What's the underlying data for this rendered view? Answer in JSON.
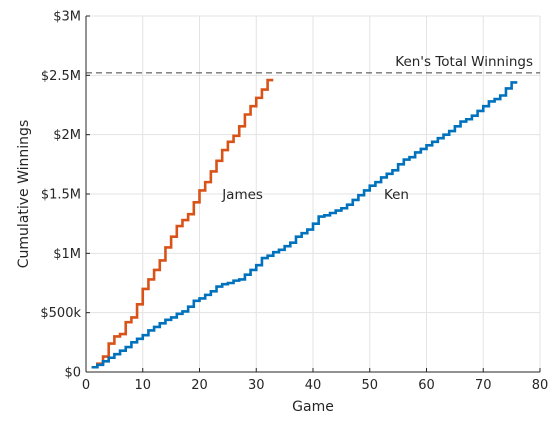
{
  "chart_data": {
    "type": "line",
    "style": "stairs",
    "xlabel": "Game",
    "ylabel": "Cumulative Winnings",
    "xlim": [
      0,
      80
    ],
    "ylim": [
      0,
      3000000
    ],
    "xticks": [
      0,
      10,
      20,
      30,
      40,
      50,
      60,
      70,
      80
    ],
    "xtick_labels": [
      "0",
      "10",
      "20",
      "30",
      "40",
      "50",
      "60",
      "70",
      "80"
    ],
    "yticks": [
      0,
      500000,
      1000000,
      1500000,
      2000000,
      2500000,
      3000000
    ],
    "ytick_labels": [
      "$0",
      "$500k",
      "$1M",
      "$1.5M",
      "$2M",
      "$2.5M",
      "$3M"
    ],
    "grid": true,
    "reference_line": {
      "y": 2520700,
      "label": "Ken's Total Winnings",
      "color": "#404040",
      "style": "dashed"
    },
    "series": [
      {
        "name": "James",
        "color": "#D95319",
        "label_at": {
          "x": 24,
          "y": 1500000
        },
        "x": [
          1,
          2,
          3,
          4,
          5,
          6,
          7,
          8,
          9,
          10,
          11,
          12,
          13,
          14,
          15,
          16,
          17,
          18,
          19,
          20,
          21,
          22,
          23,
          24,
          25,
          26,
          27,
          28,
          29,
          30,
          31,
          32
        ],
        "y": [
          40000,
          70000,
          130000,
          240000,
          300000,
          320000,
          420000,
          460000,
          570000,
          700000,
          780000,
          860000,
          940000,
          1050000,
          1140000,
          1230000,
          1280000,
          1330000,
          1430000,
          1530000,
          1600000,
          1690000,
          1780000,
          1870000,
          1940000,
          1990000,
          2070000,
          2170000,
          2240000,
          2310000,
          2380000,
          2460000
        ]
      },
      {
        "name": "Ken",
        "color": "#0072BD",
        "label_at": {
          "x": 52.5,
          "y": 1500000
        },
        "x": [
          1,
          2,
          3,
          4,
          5,
          6,
          7,
          8,
          9,
          10,
          11,
          12,
          13,
          14,
          15,
          16,
          17,
          18,
          19,
          20,
          21,
          22,
          23,
          24,
          25,
          26,
          27,
          28,
          29,
          30,
          31,
          32,
          33,
          34,
          35,
          36,
          37,
          38,
          39,
          40,
          41,
          42,
          43,
          44,
          45,
          46,
          47,
          48,
          49,
          50,
          51,
          52,
          53,
          54,
          55,
          56,
          57,
          58,
          59,
          60,
          61,
          62,
          63,
          64,
          65,
          66,
          67,
          68,
          69,
          70,
          71,
          72,
          73,
          74,
          75
        ],
        "y": [
          40000,
          60000,
          90000,
          120000,
          150000,
          180000,
          210000,
          250000,
          280000,
          310000,
          350000,
          380000,
          410000,
          440000,
          460000,
          490000,
          510000,
          550000,
          600000,
          620000,
          650000,
          680000,
          720000,
          740000,
          750000,
          770000,
          780000,
          820000,
          860000,
          900000,
          960000,
          980000,
          1010000,
          1030000,
          1060000,
          1090000,
          1140000,
          1170000,
          1200000,
          1250000,
          1310000,
          1320000,
          1340000,
          1360000,
          1380000,
          1410000,
          1450000,
          1490000,
          1530000,
          1570000,
          1600000,
          1640000,
          1670000,
          1700000,
          1750000,
          1790000,
          1810000,
          1850000,
          1880000,
          1910000,
          1940000,
          1970000,
          2000000,
          2030000,
          2070000,
          2110000,
          2130000,
          2160000,
          2200000,
          2240000,
          2280000,
          2300000,
          2330000,
          2390000,
          2440000
        ]
      }
    ]
  }
}
